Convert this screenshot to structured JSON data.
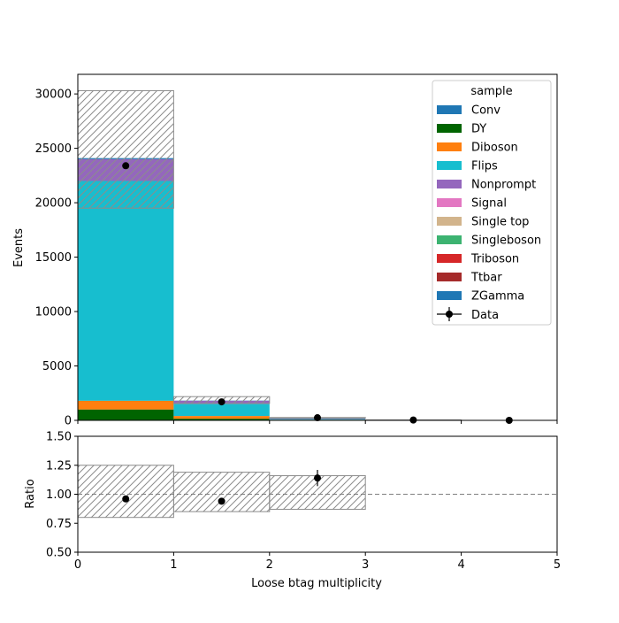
{
  "chart_data": {
    "type": "bar",
    "stacked": true,
    "xlabel": "Loose btag multiplicity",
    "ylabel": "Events",
    "ratio_ylabel": "Ratio",
    "xlim": [
      0,
      5
    ],
    "ylim": [
      0,
      31800
    ],
    "ratio_ylim": [
      0.5,
      1.5
    ],
    "bin_edges": [
      0,
      1,
      2,
      3,
      4,
      5
    ],
    "x_ticks": [
      "0",
      "1",
      "2",
      "3",
      "4",
      "5"
    ],
    "y_ticks": [
      {
        "v": 0,
        "label": "0"
      },
      {
        "v": 5000,
        "label": "5000"
      },
      {
        "v": 10000,
        "label": "10000"
      },
      {
        "v": 15000,
        "label": "15000"
      },
      {
        "v": 20000,
        "label": "20000"
      },
      {
        "v": 25000,
        "label": "25000"
      },
      {
        "v": 30000,
        "label": "30000"
      }
    ],
    "ratio_y_ticks": [
      {
        "v": 0.5,
        "label": "0.50"
      },
      {
        "v": 0.75,
        "label": "0.75"
      },
      {
        "v": 1.0,
        "label": "1.00"
      },
      {
        "v": 1.25,
        "label": "1.25"
      },
      {
        "v": 1.5,
        "label": "1.50"
      }
    ],
    "legend_title": "sample",
    "legend_position": "top-right",
    "series": [
      {
        "name": "Conv",
        "color": "#1f77b4",
        "values": [
          0,
          0,
          0,
          0,
          0
        ]
      },
      {
        "name": "DY",
        "color": "#006400",
        "values": [
          1000,
          150,
          20,
          3,
          0
        ]
      },
      {
        "name": "Diboson",
        "color": "#ff7f0e",
        "values": [
          800,
          250,
          40,
          5,
          0
        ]
      },
      {
        "name": "Flips",
        "color": "#17becf",
        "values": [
          20200,
          1100,
          60,
          10,
          0
        ]
      },
      {
        "name": "Nonprompt",
        "color": "#9467bd",
        "values": [
          2000,
          300,
          50,
          10,
          0
        ]
      },
      {
        "name": "Signal",
        "color": "#e377c2",
        "values": [
          0,
          0,
          0,
          0,
          0
        ]
      },
      {
        "name": "Single top",
        "color": "#d2b48c",
        "values": [
          0,
          0,
          0,
          0,
          0
        ]
      },
      {
        "name": "Singleboson",
        "color": "#3cb371",
        "values": [
          0,
          0,
          0,
          0,
          0
        ]
      },
      {
        "name": "Triboson",
        "color": "#d62728",
        "values": [
          0,
          0,
          0,
          0,
          0
        ]
      },
      {
        "name": "Ttbar",
        "color": "#a52a2a",
        "values": [
          0,
          0,
          0,
          0,
          0
        ]
      },
      {
        "name": "ZGamma",
        "color": "#1f77b4",
        "values": [
          100,
          20,
          5,
          0,
          0
        ]
      }
    ],
    "uncertainty_band": [
      {
        "low": 19500,
        "high": 30300
      },
      {
        "low": 1550,
        "high": 2180
      },
      {
        "low": 200,
        "high": 260
      },
      {
        "low": 20,
        "high": 40
      },
      {
        "low": 0,
        "high": 0
      }
    ],
    "data": {
      "name": "Data",
      "x": [
        0.5,
        1.5,
        2.5,
        3.5,
        4.5
      ],
      "y": [
        23400,
        1700,
        240,
        30,
        0
      ],
      "yerr": [
        153,
        41,
        15,
        5,
        0
      ]
    },
    "ratio": {
      "x": [
        0.5,
        1.5,
        2.5
      ],
      "y": [
        0.96,
        0.94,
        1.14
      ],
      "yerr": [
        0.007,
        0.025,
        0.07
      ],
      "band": [
        {
          "low": 0.8,
          "high": 1.25
        },
        {
          "low": 0.85,
          "high": 1.19
        },
        {
          "low": 0.87,
          "high": 1.16
        }
      ],
      "reference": 1.0
    }
  }
}
